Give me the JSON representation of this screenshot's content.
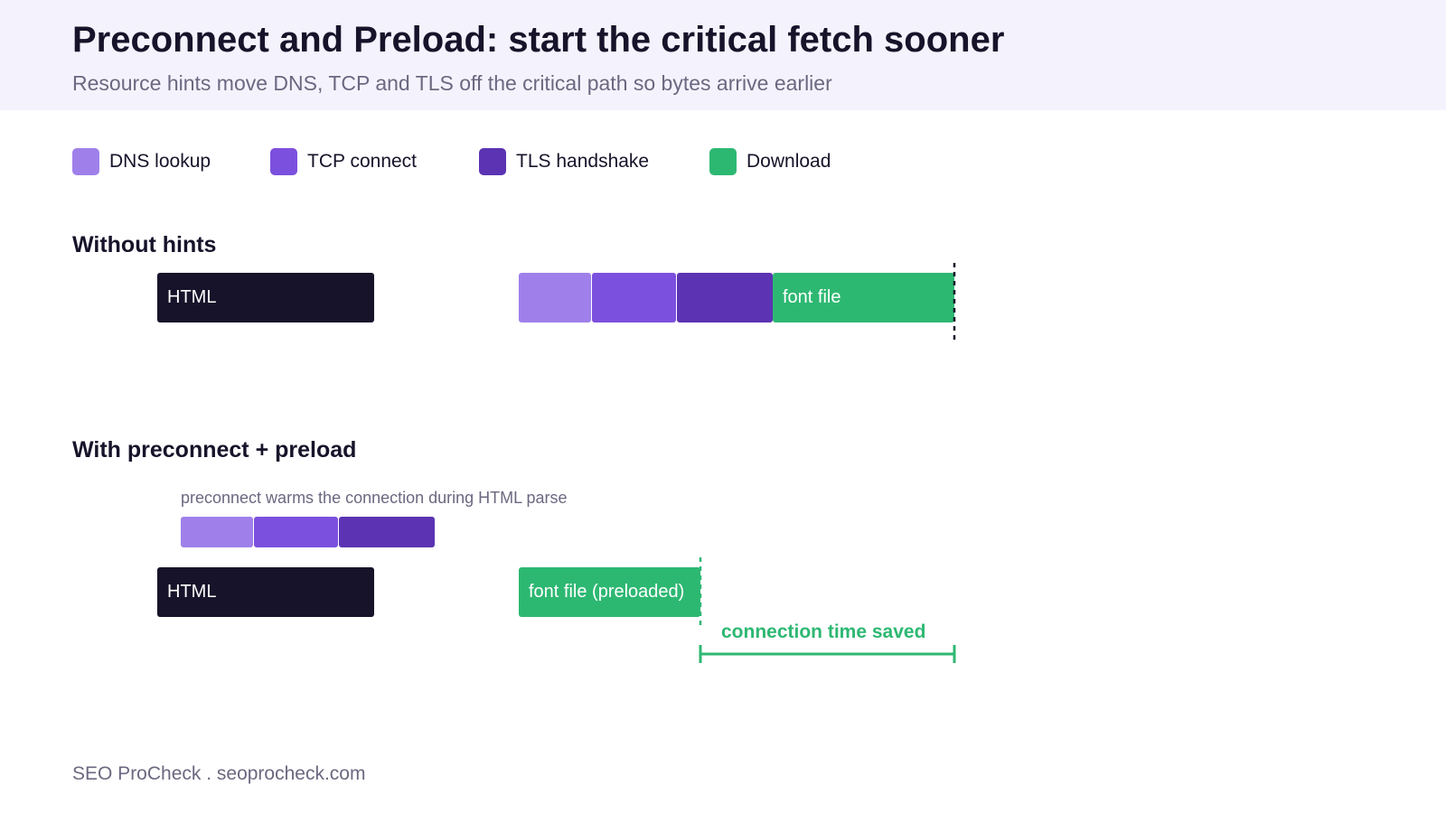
{
  "header": {
    "title": "Preconnect and Preload: start the critical fetch sooner",
    "subtitle": "Resource hints move DNS, TCP and TLS off the critical path so bytes arrive earlier"
  },
  "colors": {
    "dns": "#9f80ea",
    "tcp": "#7c50de",
    "tls": "#5b33b3",
    "download": "#2db872",
    "html": "#17132a",
    "header_bg": "#f4f3fd"
  },
  "legend": {
    "items": [
      {
        "label": "DNS lookup"
      },
      {
        "label": "TCP connect"
      },
      {
        "label": "TLS handshake"
      },
      {
        "label": "Download"
      }
    ]
  },
  "without_hints": {
    "title": "Without hints",
    "html_label": "HTML",
    "font_label": "font file"
  },
  "with_hints": {
    "title": "With preconnect + preload",
    "note": "preconnect warms the connection during HTML parse",
    "html_label": "HTML",
    "font_label": "font file (preloaded)",
    "saved_label": "connection time saved"
  },
  "footer": {
    "credit": "SEO ProCheck . seoprocheck.com"
  }
}
